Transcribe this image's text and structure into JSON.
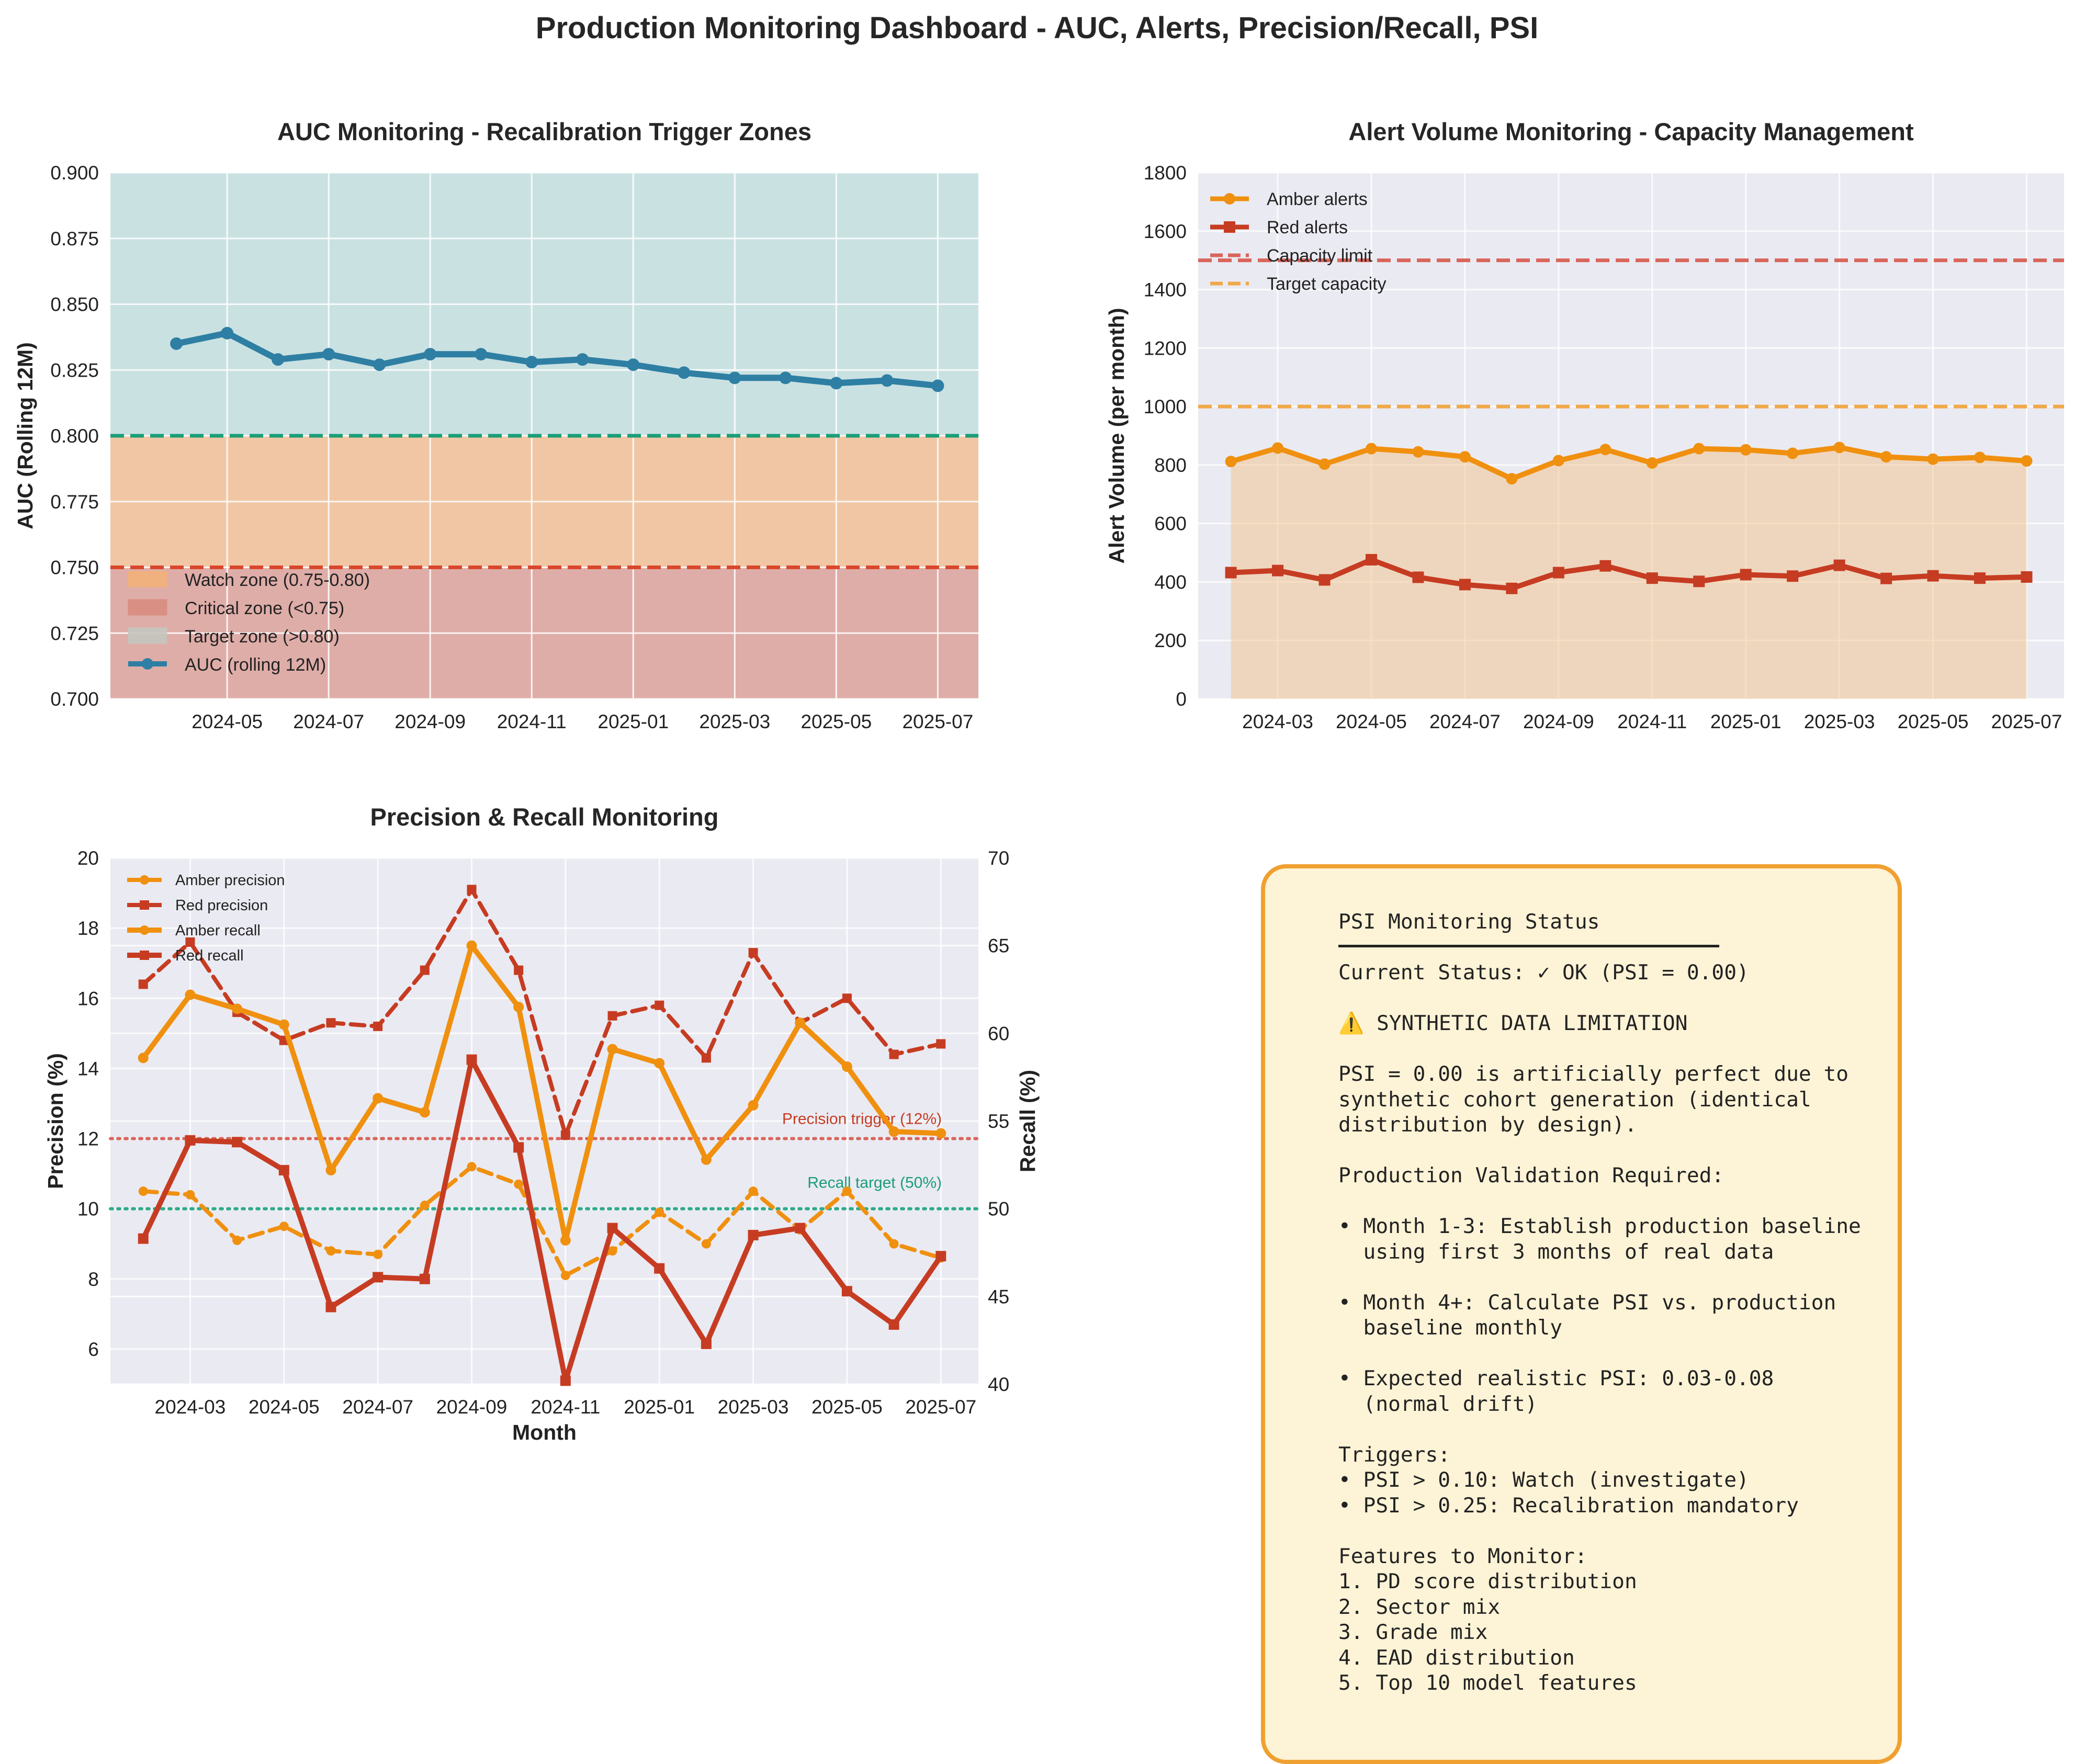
{
  "suptitle": "Production Monitoring Dashboard - AUC, Alerts, Precision/Recall, PSI",
  "colors": {
    "amber": "#f0900f",
    "red": "#c63c22",
    "auc_line": "#2e7fa3",
    "target_line": "#1a9e77",
    "critical_line": "#d9472b",
    "capacity_line": "#d9655b",
    "target_capacity_line": "#f0a94a",
    "axes_bg": "#eaeaf2",
    "grid": "#ffffff",
    "psi_border": "#f0a030",
    "psi_bg": "#fdf3d6"
  },
  "chart_data": [
    {
      "type": "line",
      "title": "AUC Monitoring - Recalibration Trigger Zones",
      "xlabel": "",
      "ylabel": "AUC (Rolling 12M)",
      "ylim": [
        0.7,
        0.9
      ],
      "yticks": [
        "0.700",
        "0.725",
        "0.750",
        "0.775",
        "0.800",
        "0.825",
        "0.850",
        "0.875",
        "0.900"
      ],
      "xticks": [
        "2024-05",
        "2024-07",
        "2024-09",
        "2024-11",
        "2025-01",
        "2025-03",
        "2025-05",
        "2025-07"
      ],
      "x": [
        "2024-04",
        "2024-05",
        "2024-06",
        "2024-07",
        "2024-08",
        "2024-09",
        "2024-10",
        "2024-11",
        "2024-12",
        "2025-01",
        "2025-02",
        "2025-03",
        "2025-04",
        "2025-05",
        "2025-06",
        "2025-07"
      ],
      "series": [
        {
          "name": "AUC (rolling 12M)",
          "values": [
            0.835,
            0.839,
            0.829,
            0.831,
            0.827,
            0.831,
            0.831,
            0.828,
            0.829,
            0.827,
            0.824,
            0.822,
            0.822,
            0.82,
            0.821,
            0.819
          ]
        }
      ],
      "zones": [
        {
          "name": "Watch zone (0.75-0.80)",
          "from": 0.75,
          "to": 0.8,
          "color": "#f2b27a"
        },
        {
          "name": "Critical zone (<0.75)",
          "from": 0.7,
          "to": 0.75,
          "color": "#d98c80"
        },
        {
          "name": "Target zone (>0.80)",
          "from": 0.8,
          "to": 0.9,
          "color": "#b9dcd9"
        }
      ],
      "hlines": [
        {
          "y": 0.8,
          "color": "#1a9e77"
        },
        {
          "y": 0.75,
          "color": "#d9472b"
        }
      ],
      "legend": "lower-left",
      "grid": true
    },
    {
      "type": "line",
      "title": "Alert Volume Monitoring - Capacity Management",
      "xlabel": "",
      "ylabel": "Alert Volume (per month)",
      "ylim": [
        0,
        1800
      ],
      "yticks": [
        "0",
        "200",
        "400",
        "600",
        "800",
        "1000",
        "1200",
        "1400",
        "1600",
        "1800"
      ],
      "xticks": [
        "2024-03",
        "2024-05",
        "2024-07",
        "2024-09",
        "2024-11",
        "2025-01",
        "2025-03",
        "2025-05",
        "2025-07"
      ],
      "x": [
        "2024-02",
        "2024-03",
        "2024-04",
        "2024-05",
        "2024-06",
        "2024-07",
        "2024-08",
        "2024-09",
        "2024-10",
        "2024-11",
        "2024-12",
        "2025-01",
        "2025-02",
        "2025-03",
        "2025-04",
        "2025-05",
        "2025-06",
        "2025-07"
      ],
      "series": [
        {
          "name": "Amber alerts",
          "values": [
            812,
            858,
            803,
            856,
            845,
            828,
            753,
            815,
            853,
            807,
            856,
            852,
            840,
            860,
            828,
            820,
            826,
            814
          ]
        },
        {
          "name": "Red alerts",
          "values": [
            432,
            439,
            407,
            476,
            416,
            391,
            378,
            432,
            455,
            413,
            402,
            425,
            420,
            457,
            412,
            421,
            413,
            417
          ]
        }
      ],
      "hlines": [
        {
          "name": "Capacity limit",
          "y": 1500,
          "color": "#d9655b"
        },
        {
          "name": "Target capacity",
          "y": 1000,
          "color": "#f0a94a"
        }
      ],
      "legend": "upper-left",
      "grid": true
    },
    {
      "type": "line",
      "title": "Precision & Recall Monitoring",
      "xlabel": "Month",
      "ylabel": "Precision (%)",
      "ylabel_right": "Recall (%)",
      "ylim": [
        5,
        20
      ],
      "ylim_right": [
        40,
        70
      ],
      "yticks": [
        "6",
        "8",
        "10",
        "12",
        "14",
        "16",
        "18",
        "20"
      ],
      "yticks_right": [
        "40",
        "45",
        "50",
        "55",
        "60",
        "65",
        "70"
      ],
      "xticks": [
        "2024-03",
        "2024-05",
        "2024-07",
        "2024-09",
        "2024-11",
        "2025-01",
        "2025-03",
        "2025-05",
        "2025-07"
      ],
      "x": [
        "2024-02",
        "2024-03",
        "2024-04",
        "2024-05",
        "2024-06",
        "2024-07",
        "2024-08",
        "2024-09",
        "2024-10",
        "2024-11",
        "2024-12",
        "2025-01",
        "2025-02",
        "2025-03",
        "2025-04",
        "2025-05",
        "2025-06",
        "2025-07"
      ],
      "series": [
        {
          "name": "Amber precision",
          "axis": "left",
          "values": [
            10.5,
            10.4,
            9.1,
            9.5,
            8.8,
            8.7,
            10.1,
            11.2,
            10.7,
            8.1,
            8.8,
            9.9,
            9.0,
            10.5,
            9.4,
            10.5,
            9.0,
            8.6
          ]
        },
        {
          "name": "Red precision",
          "axis": "left",
          "values": [
            16.4,
            17.6,
            15.6,
            14.8,
            15.3,
            15.2,
            16.8,
            19.1,
            16.8,
            12.1,
            15.5,
            15.8,
            14.3,
            17.3,
            15.3,
            16.0,
            14.4,
            14.7
          ]
        },
        {
          "name": "Amber recall",
          "axis": "right",
          "values": [
            58.6,
            62.2,
            61.4,
            60.5,
            52.2,
            56.3,
            55.5,
            65.0,
            61.5,
            48.2,
            59.1,
            58.3,
            52.8,
            55.9,
            60.6,
            58.1,
            54.4,
            54.3
          ]
        },
        {
          "name": "Red recall",
          "axis": "right",
          "values": [
            48.3,
            53.9,
            53.8,
            52.2,
            44.4,
            46.1,
            46.0,
            58.5,
            53.5,
            40.2,
            48.9,
            46.6,
            42.3,
            48.5,
            48.9,
            45.3,
            43.4,
            47.3
          ]
        }
      ],
      "hlines": [
        {
          "name": "Precision trigger (12%)",
          "y": 12,
          "axis": "left",
          "color": "#d9655b"
        },
        {
          "name": "Recall target (50%)",
          "y": 50,
          "axis": "right",
          "color": "#2eab8a"
        }
      ],
      "legend": "upper-left",
      "grid": true
    }
  ],
  "psi_panel": {
    "text": "PSI Monitoring Status\n\nCurrent Status: ✓ OK (PSI = 0.00)\n\n⚠️ SYNTHETIC DATA LIMITATION\n\nPSI = 0.00 is artificially perfect due to\nsynthetic cohort generation (identical\ndistribution by design).\n\nProduction Validation Required:\n\n• Month 1-3: Establish production baseline\n  using first 3 months of real data\n\n• Month 4+: Calculate PSI vs. production\n  baseline monthly\n\n• Expected realistic PSI: 0.03-0.08\n  (normal drift)\n\nTriggers:\n• PSI > 0.10: Watch (investigate)\n• PSI > 0.25: Recalibration mandatory\n\nFeatures to Monitor:\n1. PD score distribution\n2. Sector mix\n3. Grade mix\n4. EAD distribution\n5. Top 10 model features"
  }
}
